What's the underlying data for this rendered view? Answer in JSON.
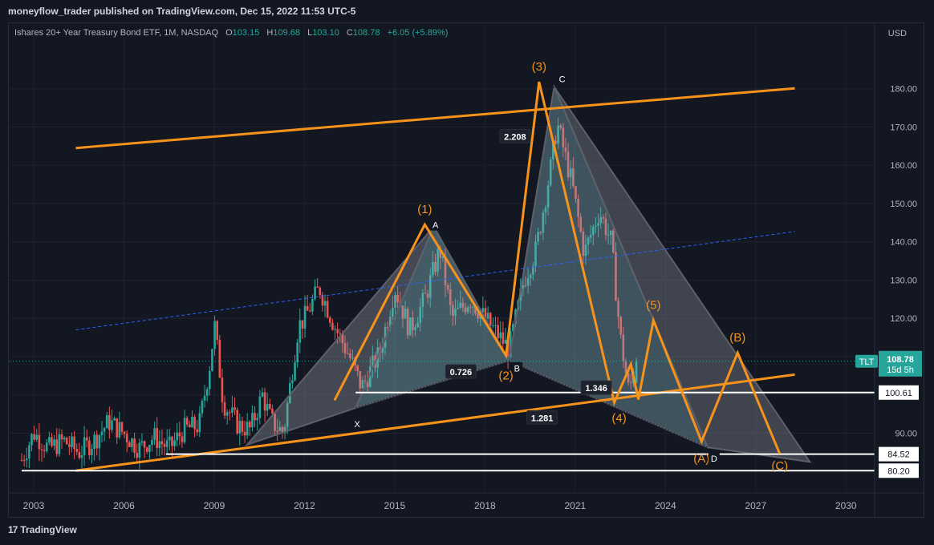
{
  "header": {
    "publisher_line": "moneyflow_trader published on TradingView.com, Dec 15, 2022 11:53 UTC-5"
  },
  "legend": {
    "symbol_desc": "Ishares 20+ Year Treasury Bond ETF, 1M, NASDAQ",
    "open_label": "O",
    "open": "103.15",
    "high_label": "H",
    "high": "109.68",
    "low_label": "L",
    "low": "103.10",
    "close_label": "C",
    "close": "108.78",
    "change": "+6.05 (+5.89%)"
  },
  "footer": {
    "logo_glyph": "17",
    "brand": "TradingView"
  },
  "colors": {
    "background": "#131722",
    "up": "#26a69a",
    "down": "#ef5350",
    "wave": "#f7931a",
    "harmonic_fill": "#a0a4ad",
    "harmonic_fill_inner": "#7fb0b8",
    "dashed_blue": "#2962ff"
  },
  "chart_data": {
    "type": "candlestick",
    "currency": "USD",
    "x_ticks": [
      "2003",
      "2006",
      "2009",
      "2012",
      "2015",
      "2018",
      "2021",
      "2024",
      "2027",
      "2030"
    ],
    "x_range": [
      2002.2,
      2030.9
    ],
    "y_ticks": [
      90,
      100,
      110,
      120,
      130,
      140,
      150,
      160,
      170,
      180
    ],
    "y_range": [
      74.6,
      196.9
    ],
    "price_series": [
      [
        2002.6,
        83
      ],
      [
        2003.0,
        90
      ],
      [
        2003.5,
        86
      ],
      [
        2004.0,
        88
      ],
      [
        2004.5,
        85
      ],
      [
        2005.0,
        88
      ],
      [
        2005.5,
        93
      ],
      [
        2006.0,
        90
      ],
      [
        2006.5,
        86
      ],
      [
        2007.0,
        89
      ],
      [
        2007.5,
        86
      ],
      [
        2008.0,
        91
      ],
      [
        2008.5,
        92
      ],
      [
        2008.9,
        110
      ],
      [
        2009.0,
        119
      ],
      [
        2009.3,
        98
      ],
      [
        2009.8,
        92
      ],
      [
        2010.2,
        91
      ],
      [
        2010.6,
        100
      ],
      [
        2010.9,
        93
      ],
      [
        2011.3,
        90
      ],
      [
        2011.8,
        118
      ],
      [
        2012.0,
        120
      ],
      [
        2012.5,
        128
      ],
      [
        2013.0,
        118
      ],
      [
        2013.5,
        110
      ],
      [
        2013.9,
        102
      ],
      [
        2014.5,
        111
      ],
      [
        2015.0,
        128
      ],
      [
        2015.5,
        117
      ],
      [
        2016.0,
        125
      ],
      [
        2016.5,
        138
      ],
      [
        2016.9,
        120
      ],
      [
        2017.5,
        125
      ],
      [
        2018.0,
        120
      ],
      [
        2018.8,
        112
      ],
      [
        2019.3,
        130
      ],
      [
        2019.7,
        138
      ],
      [
        2020.2,
        160
      ],
      [
        2020.4,
        171
      ],
      [
        2020.9,
        155
      ],
      [
        2021.3,
        137
      ],
      [
        2021.8,
        148
      ],
      [
        2022.2,
        140
      ],
      [
        2022.5,
        115
      ],
      [
        2022.8,
        100
      ],
      [
        2022.95,
        108.78
      ]
    ],
    "last_price": 108.78,
    "last_price_tag": "TLT",
    "countdown": "15d 5h",
    "horizontal_levels": [
      100.61,
      84.52,
      80.2
    ],
    "elliott_waves": [
      {
        "label": "(1)",
        "x": 2016.0,
        "y": 144.5
      },
      {
        "label": "(2)",
        "x": 2018.7,
        "y": 110.3
      },
      {
        "label": "(3)",
        "x": 2019.8,
        "y": 181.8
      },
      {
        "label": "(4)",
        "x": 2022.3,
        "y": 98.0
      },
      {
        "label": "(5)",
        "x": 2023.6,
        "y": 119.5
      },
      {
        "label": "(A)",
        "x": 2025.2,
        "y": 87.8
      },
      {
        "label": "(B)",
        "x": 2026.4,
        "y": 111.0
      },
      {
        "label": "(C)",
        "x": 2027.8,
        "y": 84.6
      }
    ],
    "wave_path": [
      [
        2013.0,
        98.6
      ],
      [
        2016.0,
        144.5
      ],
      [
        2018.7,
        110.3
      ],
      [
        2019.8,
        181.8
      ],
      [
        2022.3,
        98.0
      ],
      [
        2022.85,
        108.0
      ],
      [
        2023.1,
        98.8
      ],
      [
        2023.6,
        119.5
      ],
      [
        2025.2,
        87.8
      ],
      [
        2026.4,
        111.0
      ],
      [
        2027.8,
        84.6
      ]
    ],
    "harmonic_points": [
      {
        "label": "X",
        "x": 2013.7,
        "y": 96.6
      },
      {
        "label": "A",
        "x": 2016.3,
        "y": 144.0
      },
      {
        "label": "B",
        "x": 2018.8,
        "y": 109.0
      },
      {
        "label": "C",
        "x": 2020.3,
        "y": 180.5
      },
      {
        "label": "D",
        "x": 2025.4,
        "y": 86.3
      }
    ],
    "ratios": [
      {
        "label": "2.208",
        "x": 2019.0,
        "y": 167.5
      },
      {
        "label": "0.726",
        "x": 2017.2,
        "y": 106.0
      },
      {
        "label": "1.346",
        "x": 2021.7,
        "y": 101.8
      },
      {
        "label": "1.281",
        "x": 2019.9,
        "y": 94.0
      }
    ],
    "channel_upper": [
      [
        2004.4,
        164.5
      ],
      [
        2028.3,
        180.1
      ]
    ],
    "channel_lower": [
      [
        2004.4,
        80.2
      ],
      [
        2028.3,
        105.3
      ]
    ],
    "dashed_line": [
      [
        2004.4,
        117.0
      ],
      [
        2028.3,
        142.7
      ]
    ]
  }
}
